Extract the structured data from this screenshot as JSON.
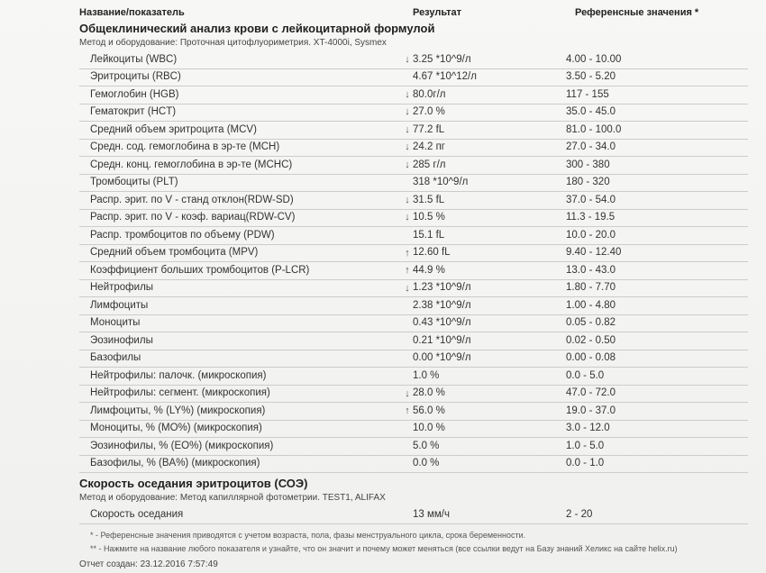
{
  "header": {
    "name": "Название/показатель",
    "result": "Результат",
    "reference": "Референсные значения *"
  },
  "section1": {
    "title": "Общеклинический анализ крови с лейкоцитарной формулой",
    "method_label": "Метод и оборудование:",
    "method_value": "Проточная цитофлуориметрия. XT-4000i, Sysmex",
    "rows": [
      {
        "name": "Лейкоциты (WBC)",
        "arrow": "↓",
        "result": "3.25 *10^9/л",
        "ref": "4.00 - 10.00"
      },
      {
        "name": "Эритроциты (RBC)",
        "arrow": "",
        "result": "4.67 *10^12/л",
        "ref": "3.50 - 5.20"
      },
      {
        "name": "Гемоглобин (HGB)",
        "arrow": "↓",
        "result": "80.0г/л",
        "ref": "117 - 155"
      },
      {
        "name": "Гематокрит (HCT)",
        "arrow": "↓",
        "result": "27.0 %",
        "ref": "35.0 - 45.0"
      },
      {
        "name": "Средний объем эритроцита (MCV)",
        "arrow": "↓",
        "result": "77.2 fL",
        "ref": "81.0 - 100.0"
      },
      {
        "name": "Средн. сод. гемоглобина в эр-те (MCH)",
        "arrow": "↓",
        "result": "24.2 пг",
        "ref": "27.0 - 34.0"
      },
      {
        "name": "Средн. конц. гемоглобина в эр-те (MCHC)",
        "arrow": "↓",
        "result": "285 г/л",
        "ref": "300 - 380"
      },
      {
        "name": "Тромбоциты (PLT)",
        "arrow": "",
        "result": "318 *10^9/л",
        "ref": "180 - 320"
      },
      {
        "name": "Распр. эрит. по V - станд отклон(RDW-SD)",
        "arrow": "↓",
        "result": "31.5 fL",
        "ref": "37.0 - 54.0"
      },
      {
        "name": "Распр. эрит. по V - коэф. вариац(RDW-CV)",
        "arrow": "↓",
        "result": "10.5 %",
        "ref": "11.3 - 19.5"
      },
      {
        "name": "Распр. тромбоцитов по объему (PDW)",
        "arrow": "",
        "result": "15.1 fL",
        "ref": "10.0 - 20.0"
      },
      {
        "name": "Средний объем тромбоцита (MPV)",
        "arrow": "↑",
        "result": "12.60 fL",
        "ref": "9.40 - 12.40"
      },
      {
        "name": "Коэффициент больших тромбоцитов (P-LCR)",
        "arrow": "↑",
        "result": "44.9 %",
        "ref": "13.0 - 43.0"
      },
      {
        "name": "Нейтрофилы",
        "arrow": "↓",
        "result": "1.23 *10^9/л",
        "ref": "1.80 - 7.70"
      },
      {
        "name": "Лимфоциты",
        "arrow": "",
        "result": "2.38 *10^9/л",
        "ref": "1.00 - 4.80"
      },
      {
        "name": "Моноциты",
        "arrow": "",
        "result": "0.43 *10^9/л",
        "ref": "0.05 - 0.82"
      },
      {
        "name": "Эозинофилы",
        "arrow": "",
        "result": "0.21 *10^9/л",
        "ref": "0.02 - 0.50"
      },
      {
        "name": "Базофилы",
        "arrow": "",
        "result": "0.00 *10^9/л",
        "ref": "0.00 - 0.08"
      },
      {
        "name": "Нейтрофилы: палочк. (микроскопия)",
        "arrow": "",
        "result": "1.0 %",
        "ref": "0.0 - 5.0"
      },
      {
        "name": "Нейтрофилы: сегмент. (микроскопия)",
        "arrow": "↓",
        "result": "28.0 %",
        "ref": "47.0 - 72.0"
      },
      {
        "name": "Лимфоциты, % (LY%) (микроскопия)",
        "arrow": "↑",
        "result": "56.0 %",
        "ref": "19.0 - 37.0"
      },
      {
        "name": "Моноциты, % (MO%) (микроскопия)",
        "arrow": "",
        "result": "10.0 %",
        "ref": "3.0 - 12.0"
      },
      {
        "name": "Эозинофилы, % (EO%) (микроскопия)",
        "arrow": "",
        "result": "5.0 %",
        "ref": "1.0 - 5.0"
      },
      {
        "name": "Базофилы, % (BA%) (микроскопия)",
        "arrow": "",
        "result": "0.0 %",
        "ref": "0.0 - 1.0"
      }
    ]
  },
  "section2": {
    "title": "Скорость оседания эритроцитов (СОЭ)",
    "method_label": "Метод и оборудование:",
    "method_value": "Метод капиллярной фотометрии. TEST1, ALIFAX",
    "rows": [
      {
        "name": "Скорость оседания",
        "arrow": "",
        "result": "13 мм/ч",
        "ref": "2 - 20"
      }
    ]
  },
  "footnotes": {
    "f1": "* - Референсные значения приводятся с учетом возраста, пола, фазы менструального цикла, срока беременности.",
    "f2": "** - Нажмите на название любого показателя и узнайте, что он значит и почему может меняться (все ссылки ведут на Базу знаний Хеликс на сайте helix.ru)"
  },
  "report": {
    "label": "Отчет создан:",
    "value": "23.12.2016  7:57:49"
  },
  "colors": {
    "bg": "#f4f4f2",
    "text": "#333333",
    "border": "#cccccc"
  }
}
